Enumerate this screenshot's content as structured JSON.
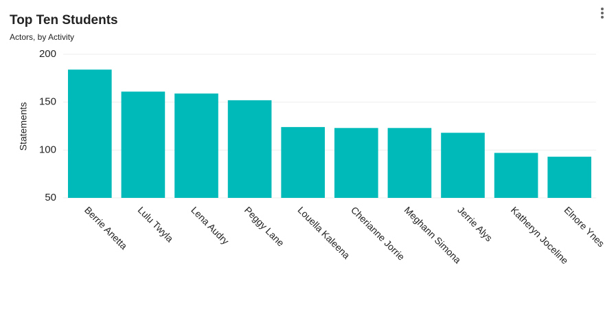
{
  "chart_data": {
    "type": "bar",
    "title": "Top Ten Students",
    "subtitle": "Actors, by Activity",
    "y_label": "Statements",
    "categories": [
      "Berrie Anetta",
      "Lulu Twyla",
      "Lena Audry",
      "Peggy Lane",
      "Louella Kaleena",
      "Cherianne Jorrie",
      "Meghann Simona",
      "Jerrie Alys",
      "Katheryn Joceline",
      "Elnore Ynes"
    ],
    "values": [
      184,
      161,
      159,
      152,
      124,
      123,
      123,
      118,
      97,
      93
    ],
    "color": "#00baba",
    "ylim": [
      50,
      200
    ],
    "yticks": [
      50,
      100,
      150,
      200
    ],
    "grid": true
  }
}
